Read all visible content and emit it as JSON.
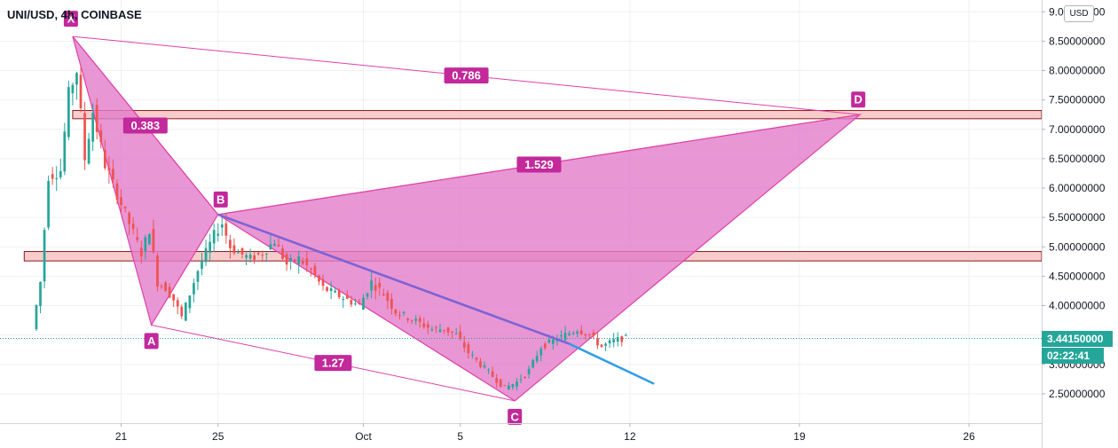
{
  "header": {
    "title": "UNI/USD, 4h, COINBASE",
    "currency_button": "USD"
  },
  "last_price": {
    "label": "3.44150000",
    "value": 3.4415,
    "color": "#26a69a"
  },
  "countdown": {
    "label": "02:22:41",
    "color": "#26a69a"
  },
  "chart_data": {
    "type": "candlestick",
    "y_axis": {
      "range": [
        2.0,
        9.2
      ],
      "ticks": [
        {
          "value": 2.5,
          "label": "2.50000000"
        },
        {
          "value": 3.0,
          "label": "3.00000000"
        },
        {
          "value": 3.5,
          "label": "3.50000000"
        },
        {
          "value": 4.0,
          "label": "4.00000000"
        },
        {
          "value": 4.5,
          "label": "4.50000000"
        },
        {
          "value": 5.0,
          "label": "5.00000000"
        },
        {
          "value": 5.5,
          "label": "5.50000000"
        },
        {
          "value": 6.0,
          "label": "6.00000000"
        },
        {
          "value": 6.5,
          "label": "6.50000000"
        },
        {
          "value": 7.0,
          "label": "7.00000000"
        },
        {
          "value": 7.5,
          "label": "7.50000000"
        },
        {
          "value": 8.0,
          "label": "8.00000000"
        },
        {
          "value": 8.5,
          "label": "8.50000000"
        },
        {
          "value": 9.0,
          "label": "9.00000000"
        }
      ]
    },
    "x_axis": {
      "range": [
        "2020-09-16",
        "2020-10-29"
      ],
      "ticks": [
        {
          "date": "2020-09-21",
          "label": "21"
        },
        {
          "date": "2020-09-25",
          "label": "25"
        },
        {
          "date": "2020-10-01",
          "label": "Oct"
        },
        {
          "date": "2020-10-05",
          "label": "5"
        },
        {
          "date": "2020-10-12",
          "label": "12"
        },
        {
          "date": "2020-10-19",
          "label": "19"
        },
        {
          "date": "2020-10-26",
          "label": "26"
        }
      ]
    },
    "grid": true,
    "colors": {
      "up": "#26a69a",
      "down": "#ef5350",
      "pattern": "#e040a8",
      "pattern_fill": "#e27cc9",
      "trendline_purple": "#7b63d6",
      "trendline_blue": "#2f9ee6",
      "zone_fill": "#f7c3c3",
      "zone_border": "#8b1a1a",
      "label_bg": "#c2299a"
    },
    "price_path": [
      [
        "2020-09-17 12:00",
        3.6
      ],
      [
        "2020-09-17 20:00",
        4.4
      ],
      [
        "2020-09-18 04:00",
        6.2
      ],
      [
        "2020-09-18 16:00",
        6.3
      ],
      [
        "2020-09-19 00:00",
        7.6
      ],
      [
        "2020-09-19 08:00",
        8.0
      ],
      [
        "2020-09-19 16:00",
        6.5
      ],
      [
        "2020-09-20 00:00",
        7.3
      ],
      [
        "2020-09-20 12:00",
        6.4
      ],
      [
        "2020-09-21 00:00",
        5.9
      ],
      [
        "2020-09-21 12:00",
        5.4
      ],
      [
        "2020-09-22 00:00",
        4.9
      ],
      [
        "2020-09-22 08:00",
        5.3
      ],
      [
        "2020-09-22 16:00",
        4.4
      ],
      [
        "2020-09-23 00:00",
        4.3
      ],
      [
        "2020-09-23 08:00",
        4.1
      ],
      [
        "2020-09-23 16:00",
        3.8
      ],
      [
        "2020-09-24 00:00",
        4.2
      ],
      [
        "2020-09-24 08:00",
        4.6
      ],
      [
        "2020-09-24 16:00",
        4.9
      ],
      [
        "2020-09-25 00:00",
        5.2
      ],
      [
        "2020-09-25 08:00",
        5.4
      ],
      [
        "2020-09-25 16:00",
        5.0
      ],
      [
        "2020-09-26 00:00",
        4.9
      ],
      [
        "2020-09-26 12:00",
        4.8
      ],
      [
        "2020-09-27 00:00",
        4.9
      ],
      [
        "2020-09-27 12:00",
        5.1
      ],
      [
        "2020-09-28 00:00",
        4.7
      ],
      [
        "2020-09-28 12:00",
        4.8
      ],
      [
        "2020-09-29 00:00",
        4.6
      ],
      [
        "2020-09-29 12:00",
        4.3
      ],
      [
        "2020-09-30 00:00",
        4.2
      ],
      [
        "2020-09-30 12:00",
        4.1
      ],
      [
        "2020-10-01 00:00",
        4.0
      ],
      [
        "2020-10-01 12:00",
        4.4
      ],
      [
        "2020-10-02 00:00",
        4.2
      ],
      [
        "2020-10-02 12:00",
        3.9
      ],
      [
        "2020-10-03 00:00",
        3.8
      ],
      [
        "2020-10-03 12:00",
        3.7
      ],
      [
        "2020-10-04 00:00",
        3.6
      ],
      [
        "2020-10-04 12:00",
        3.6
      ],
      [
        "2020-10-05 00:00",
        3.5
      ],
      [
        "2020-10-05 12:00",
        3.2
      ],
      [
        "2020-10-06 00:00",
        3.0
      ],
      [
        "2020-10-06 12:00",
        2.8
      ],
      [
        "2020-10-07 00:00",
        2.6
      ],
      [
        "2020-10-07 12:00",
        2.7
      ],
      [
        "2020-10-08 00:00",
        2.9
      ],
      [
        "2020-10-08 12:00",
        3.3
      ],
      [
        "2020-10-09 00:00",
        3.4
      ],
      [
        "2020-10-09 12:00",
        3.5
      ],
      [
        "2020-10-10 00:00",
        3.6
      ],
      [
        "2020-10-10 12:00",
        3.5
      ],
      [
        "2020-10-11 00:00",
        3.3
      ],
      [
        "2020-10-11 12:00",
        3.4
      ],
      [
        "2020-10-11 20:00",
        3.44
      ]
    ],
    "harmonic_pattern": {
      "points": {
        "X": {
          "date": "2020-09-19 00:00",
          "price": 8.58
        },
        "A": {
          "date": "2020-09-22 06:00",
          "price": 3.67
        },
        "B": {
          "date": "2020-09-25 00:00",
          "price": 5.55
        },
        "C": {
          "date": "2020-10-07 06:00",
          "price": 2.38
        },
        "D": {
          "date": "2020-10-21 12:00",
          "price": 7.25
        }
      },
      "ratios": [
        {
          "between": [
            "X",
            "B"
          ],
          "label": "0.383"
        },
        {
          "between": [
            "A",
            "C"
          ],
          "label": "1.27"
        },
        {
          "between": [
            "B",
            "D"
          ],
          "label": "1.529"
        },
        {
          "between": [
            "X",
            "D"
          ],
          "label": "0.786"
        }
      ]
    },
    "zones": [
      {
        "from": 7.18,
        "to": 7.32,
        "start": "2020-09-19 00:00"
      },
      {
        "from": 4.76,
        "to": 4.92,
        "start": "2020-09-17 00:00"
      }
    ],
    "trendlines": [
      {
        "color": "purple",
        "from": {
          "date": "2020-09-25 00:00",
          "price": 5.55
        },
        "to": {
          "date": "2020-10-09 12:00",
          "price": 3.35
        }
      },
      {
        "color": "blue",
        "from": {
          "date": "2020-10-09 12:00",
          "price": 3.35
        },
        "to": {
          "date": "2020-10-13 00:00",
          "price": 2.67
        }
      }
    ]
  }
}
